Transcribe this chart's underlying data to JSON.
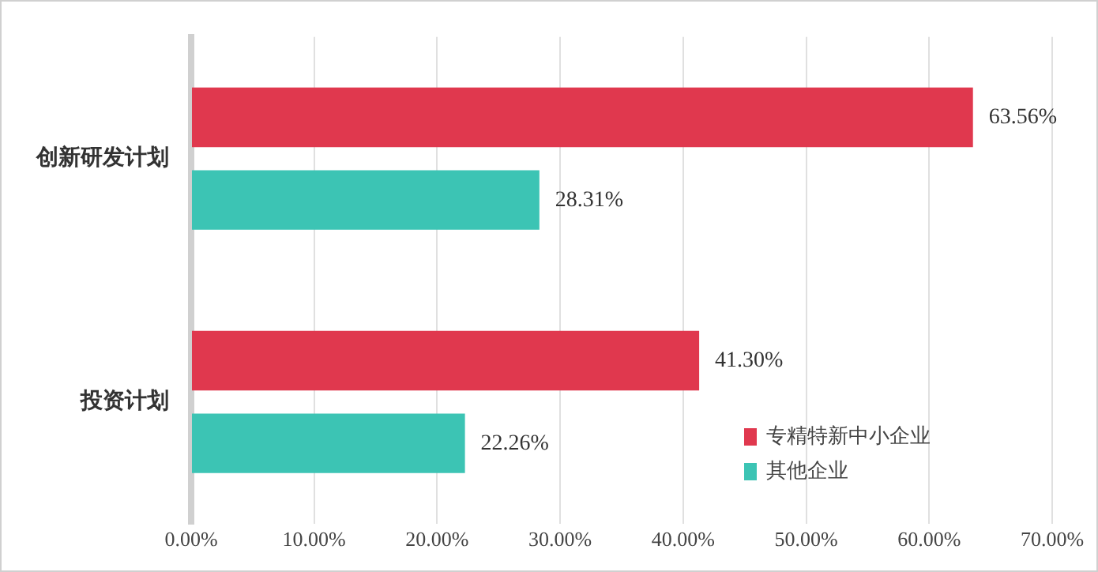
{
  "chart_data": {
    "type": "bar",
    "orientation": "horizontal",
    "categories": [
      "创新研发计划",
      "投资计划"
    ],
    "series": [
      {
        "name": "专精特新中小企业",
        "color": "#e0384e",
        "values": [
          63.56,
          41.3
        ],
        "value_labels": [
          "63.56%",
          "41.30%"
        ]
      },
      {
        "name": "其他企业",
        "color": "#3cc4b4",
        "values": [
          28.31,
          22.26
        ],
        "value_labels": [
          "28.31%",
          "22.26%"
        ]
      }
    ],
    "xlim": [
      0,
      70
    ],
    "xticks": [
      {
        "value": 0,
        "label": "0.00%"
      },
      {
        "value": 10,
        "label": "10.00%"
      },
      {
        "value": 20,
        "label": "20.00%"
      },
      {
        "value": 30,
        "label": "30.00%"
      },
      {
        "value": 40,
        "label": "40.00%"
      },
      {
        "value": 50,
        "label": "50.00%"
      },
      {
        "value": 60,
        "label": "60.00%"
      },
      {
        "value": 70,
        "label": "70.00%"
      }
    ],
    "grid": "x",
    "legend": "bottom right"
  }
}
